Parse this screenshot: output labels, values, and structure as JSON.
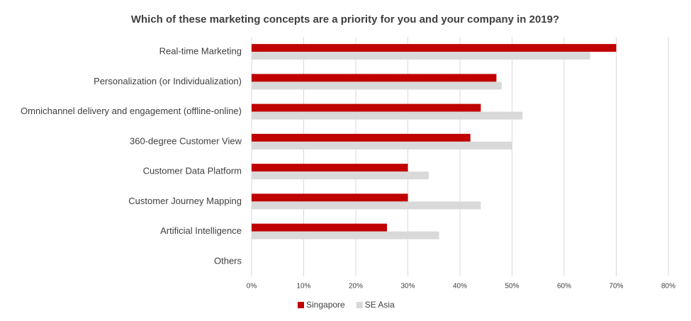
{
  "chart_data": {
    "type": "bar",
    "orientation": "horizontal",
    "title": "Which of these marketing concepts are a priority for you and your company in 2019?",
    "categories": [
      "Real-time Marketing",
      "Personalization (or Individualization)",
      "Omnichannel delivery and engagement (offline-online)",
      "360-degree Customer View",
      "Customer Data Platform",
      "Customer Journey Mapping",
      "Artificial Intelligence",
      "Others"
    ],
    "series": [
      {
        "name": "Singapore",
        "color": "#c00000",
        "values": [
          70,
          47,
          44,
          42,
          30,
          30,
          26,
          0
        ]
      },
      {
        "name": "SE Asia",
        "color": "#d9d9d9",
        "values": [
          65,
          48,
          52,
          50,
          34,
          44,
          36,
          0
        ]
      }
    ],
    "xlim": [
      0,
      80
    ],
    "xticks": [
      {
        "value": 0,
        "label": "0%"
      },
      {
        "value": 10,
        "label": "10%"
      },
      {
        "value": 20,
        "label": "20%"
      },
      {
        "value": 30,
        "label": "30%"
      },
      {
        "value": 40,
        "label": "40%"
      },
      {
        "value": 50,
        "label": "50%"
      },
      {
        "value": 60,
        "label": "60%"
      },
      {
        "value": 70,
        "label": "70%"
      },
      {
        "value": 80,
        "label": "80%"
      }
    ],
    "grid": true,
    "legend": "bottom"
  }
}
